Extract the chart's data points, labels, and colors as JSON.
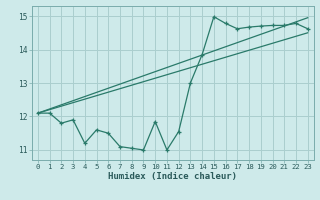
{
  "xlabel": "Humidex (Indice chaleur)",
  "bg_color": "#ceeaea",
  "grid_color": "#aacece",
  "line_color": "#2a7a6a",
  "xlim": [
    -0.5,
    23.5
  ],
  "ylim": [
    10.7,
    15.3
  ],
  "yticks": [
    11,
    12,
    13,
    14,
    15
  ],
  "xticks": [
    0,
    1,
    2,
    3,
    4,
    5,
    6,
    7,
    8,
    9,
    10,
    11,
    12,
    13,
    14,
    15,
    16,
    17,
    18,
    19,
    20,
    21,
    22,
    23
  ],
  "series1_x": [
    0,
    1,
    2,
    3,
    4,
    5,
    6,
    7,
    8,
    9,
    10,
    11,
    12,
    13,
    14,
    15,
    16,
    17,
    18,
    19,
    20,
    21,
    22,
    23
  ],
  "series1_y": [
    12.1,
    12.1,
    11.8,
    11.9,
    11.2,
    11.6,
    11.5,
    11.1,
    11.05,
    11.0,
    11.85,
    11.0,
    11.55,
    13.0,
    13.85,
    14.98,
    14.78,
    14.62,
    14.67,
    14.7,
    14.72,
    14.72,
    14.78,
    14.62
  ],
  "trend1_x": [
    0,
    23
  ],
  "trend1_y": [
    12.1,
    14.95
  ],
  "trend2_x": [
    0,
    23
  ],
  "trend2_y": [
    12.1,
    14.5
  ],
  "xlabel_fontsize": 6.5,
  "tick_fontsize": 5.2
}
